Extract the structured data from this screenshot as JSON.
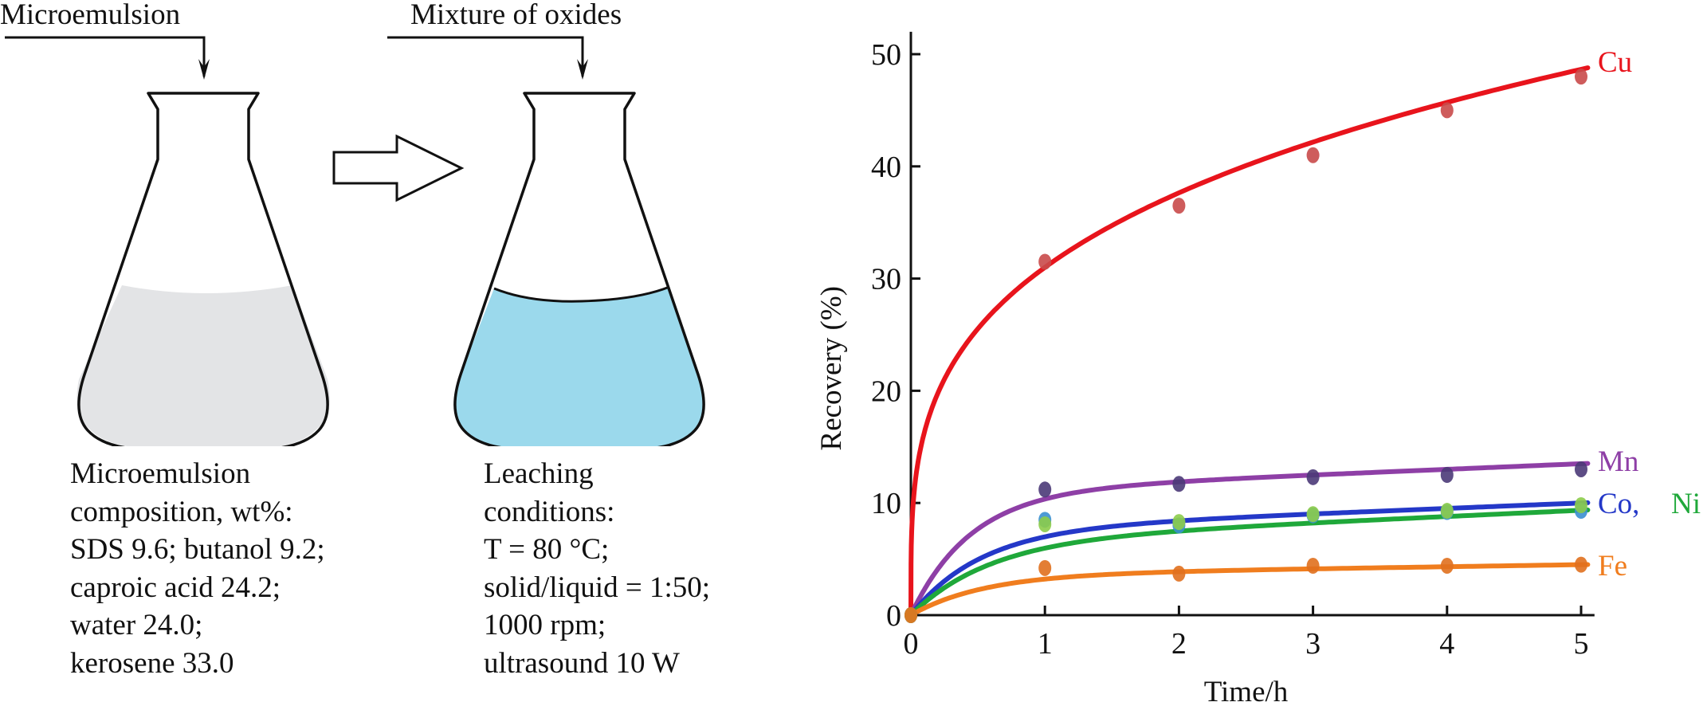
{
  "diagram": {
    "input_label_1": "Microemulsion",
    "input_label_2": "Mixture of oxides",
    "flask_1_fill_color": "#e3e4e6",
    "flask_2_fill_color": "#9bd9ec",
    "composition_lines": [
      "Microemulsion",
      "composition, wt%:",
      "SDS 9.6; butanol 9.2;",
      "caproic acid 24.2;",
      "water 24.0;",
      "kerosene 33.0"
    ],
    "conditions_lines": [
      "Leaching",
      "conditions:",
      "T = 80 °C;",
      "solid/liquid = 1:50;",
      "1000 rpm;",
      "ultrasound 10 W"
    ]
  },
  "chart_data": {
    "type": "line",
    "title": "",
    "xlabel": "Time/h",
    "ylabel": "Recovery (%)",
    "xlim": [
      0,
      5.1
    ],
    "ylim": [
      0,
      52
    ],
    "x_ticks": [
      0,
      1,
      2,
      3,
      4,
      5
    ],
    "y_ticks": [
      0,
      10,
      20,
      30,
      40,
      50
    ],
    "grid": false,
    "legend": "inline labels at right end of each curve",
    "series": [
      {
        "name": "Cu",
        "color": "#e8141c",
        "marker_color": "#c94a4a",
        "x": [
          0,
          1,
          2,
          3,
          4,
          5
        ],
        "values": [
          0,
          31.5,
          36.5,
          41.0,
          45.0,
          48.0
        ],
        "fit": {
          "model": "power",
          "a": 31.0,
          "b": 0.28
        }
      },
      {
        "name": "Mn",
        "color": "#8e3fa6",
        "marker_color": "#4b3a78",
        "x": [
          0,
          1,
          2,
          3,
          4,
          5
        ],
        "values": [
          0,
          11.2,
          11.7,
          12.3,
          12.5,
          13.0
        ],
        "fit": {
          "model": "saturation",
          "plateau": 11.0,
          "k": 2.3,
          "slope": 0.5
        }
      },
      {
        "name": "Co",
        "color": "#2438c8",
        "marker_color": "#3a8fd0",
        "x": [
          0,
          1,
          2,
          3,
          4,
          5
        ],
        "values": [
          0,
          8.5,
          8.0,
          8.9,
          9.2,
          9.3
        ],
        "fit": {
          "model": "saturation",
          "plateau": 7.6,
          "k": 2.0,
          "slope": 0.48
        }
      },
      {
        "name": "Ni",
        "color": "#1fa83a",
        "marker_color": "#8ccc4a",
        "x": [
          0,
          1,
          2,
          3,
          4,
          5
        ],
        "values": [
          0,
          8.1,
          8.3,
          9.0,
          9.3,
          9.8
        ],
        "fit": {
          "model": "saturation",
          "plateau": 6.6,
          "k": 1.8,
          "slope": 0.55
        }
      },
      {
        "name": "Fe",
        "color": "#f07d1e",
        "marker_color": "#e0701e",
        "x": [
          0,
          1,
          2,
          3,
          4,
          5
        ],
        "values": [
          0,
          4.2,
          3.7,
          4.4,
          4.4,
          4.5
        ],
        "fit": {
          "model": "saturation",
          "plateau": 3.6,
          "k": 1.9,
          "slope": 0.18
        }
      }
    ],
    "annotations": [
      {
        "text": "Cu",
        "color": "#e8141c",
        "series": "Cu"
      },
      {
        "text": "Mn",
        "color": "#8e3fa6",
        "series": "Mn"
      },
      {
        "text": "Co,",
        "color": "#2438c8",
        "series": "Co"
      },
      {
        "text": "Ni",
        "color": "#1fa83a",
        "series": "Ni"
      },
      {
        "text": "Fe",
        "color": "#f07d1e",
        "series": "Fe"
      }
    ]
  }
}
